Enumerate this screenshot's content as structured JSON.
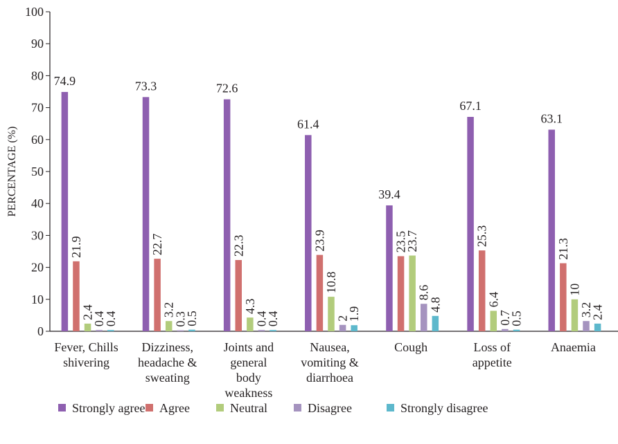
{
  "chart_data": {
    "type": "bar",
    "title": "",
    "xlabel": "",
    "ylabel": "PERCENTAGE (%)",
    "ylim": [
      0,
      100
    ],
    "yticks": [
      "0",
      "10",
      "20",
      "30",
      "40",
      "50",
      "60",
      "70",
      "80",
      "90",
      "100"
    ],
    "grid": false,
    "legend_position": "bottom",
    "categories": [
      [
        "Fever, Chills",
        "shivering"
      ],
      [
        "Dizziness,",
        "headache &",
        "sweating"
      ],
      [
        "Joints and",
        "general",
        "body",
        "weakness"
      ],
      [
        "Nausea,",
        "vomiting &",
        "diarrhoea"
      ],
      [
        "Cough"
      ],
      [
        "Loss of",
        "appetite"
      ],
      [
        "Anaemia"
      ]
    ],
    "series": [
      {
        "name": "Strongly agree",
        "color": "#8e5fb0",
        "values": [
          74.9,
          73.3,
          72.6,
          61.4,
          39.4,
          67.1,
          63.1
        ],
        "labels": [
          "74.9",
          "73.3",
          "72.6",
          "61.4",
          "39.4",
          "67.1",
          "63.1"
        ]
      },
      {
        "name": "Agree",
        "color": "#d0706e",
        "values": [
          21.9,
          22.7,
          22.3,
          23.9,
          23.5,
          25.3,
          21.3
        ],
        "labels": [
          "21.9",
          "22.7",
          "22.3",
          "23.9",
          "23.5",
          "25.3",
          "21.3"
        ]
      },
      {
        "name": "Neutral",
        "color": "#b2cc7c",
        "values": [
          2.4,
          3.2,
          4.3,
          10.8,
          23.7,
          6.4,
          10
        ],
        "labels": [
          "2.4",
          "3.2",
          "4.3",
          "10.8",
          "23.7",
          "6.4",
          "10"
        ]
      },
      {
        "name": "Disagree",
        "color": "#a593bf",
        "values": [
          0.4,
          0.3,
          0.4,
          2,
          8.6,
          0.7,
          3.2
        ],
        "labels": [
          "0.4",
          "0.3",
          "0.4",
          "2",
          "8.6",
          "0.7",
          "3.2"
        ]
      },
      {
        "name": "Strongly disagree",
        "color": "#5db8cc",
        "values": [
          0.4,
          0.5,
          0.4,
          1.9,
          4.8,
          0.5,
          2.4
        ],
        "labels": [
          "0.4",
          "0.5",
          "0.4",
          "1.9",
          "4.8",
          "0.5",
          "2.4"
        ]
      }
    ]
  }
}
